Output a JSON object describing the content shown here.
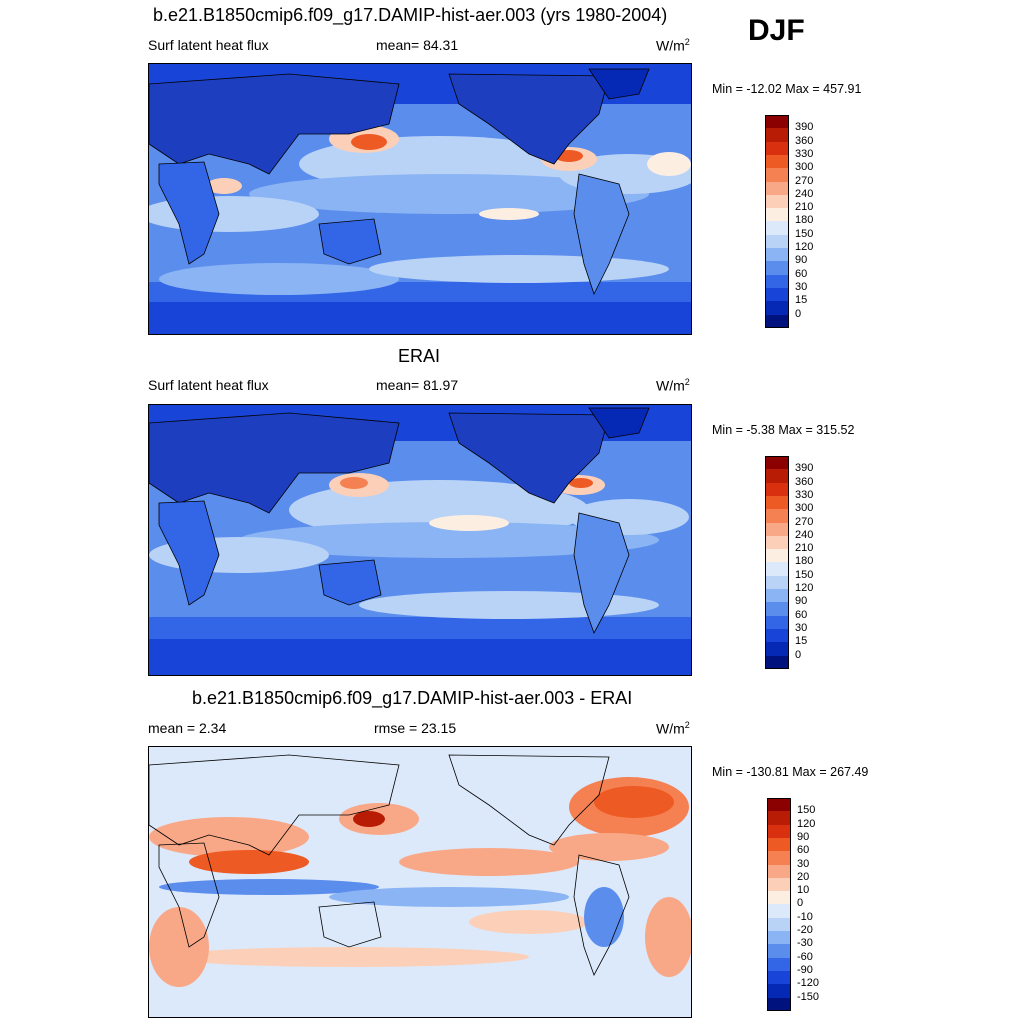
{
  "season": "DJF",
  "panels": [
    {
      "title": "b.e21.B1850cmip6.f09_g17.DAMIP-hist-aer.003 (yrs 1980-2004)",
      "left": "Surf latent heat flux",
      "center": "mean=  84.31",
      "units": "W/m",
      "units_sup": "2",
      "minmax": "Min = -12.02 Max = 457.91",
      "colorbar": {
        "labels": [
          "390",
          "360",
          "330",
          "300",
          "270",
          "240",
          "210",
          "180",
          "150",
          "120",
          "90",
          "60",
          "30",
          "15",
          "0"
        ],
        "colors": [
          "#8b0000",
          "#b81c05",
          "#d9300f",
          "#ee5a23",
          "#f58153",
          "#f9a887",
          "#fcd0b8",
          "#fdeee2",
          "#dce9fb",
          "#b9d3f7",
          "#8ab4f3",
          "#5b8ded",
          "#3366e6",
          "#1845d7",
          "#0528b5",
          "#00127d"
        ]
      }
    },
    {
      "title": "ERAI",
      "left": "Surf latent heat flux",
      "center": "mean=  81.97",
      "units": "W/m",
      "units_sup": "2",
      "minmax": "Min =  -5.38 Max = 315.52",
      "colorbar": {
        "labels": [
          "390",
          "360",
          "330",
          "300",
          "270",
          "240",
          "210",
          "180",
          "150",
          "120",
          "90",
          "60",
          "30",
          "15",
          "0"
        ],
        "colors": [
          "#8b0000",
          "#b81c05",
          "#d9300f",
          "#ee5a23",
          "#f58153",
          "#f9a887",
          "#fcd0b8",
          "#fdeee2",
          "#dce9fb",
          "#b9d3f7",
          "#8ab4f3",
          "#5b8ded",
          "#3366e6",
          "#1845d7",
          "#0528b5",
          "#00127d"
        ]
      }
    },
    {
      "title": "b.e21.B1850cmip6.f09_g17.DAMIP-hist-aer.003 - ERAI",
      "left": "mean =   2.34",
      "center": "rmse =  23.15",
      "units": "W/m",
      "units_sup": "2",
      "minmax": "Min = -130.81 Max = 267.49",
      "colorbar": {
        "labels": [
          "150",
          "120",
          "90",
          "60",
          "30",
          "20",
          "10",
          "0",
          "-10",
          "-20",
          "-30",
          "-60",
          "-90",
          "-120",
          "-150"
        ],
        "colors": [
          "#8b0000",
          "#b81c05",
          "#d9300f",
          "#ee5a23",
          "#f58153",
          "#f9a887",
          "#fcd0b8",
          "#fdeee2",
          "#dce9fb",
          "#b9d3f7",
          "#8ab4f3",
          "#5b8ded",
          "#3366e6",
          "#1845d7",
          "#0528b5",
          "#00127d"
        ]
      }
    }
  ],
  "map_palette": {
    "deep_blue": "#0a2fa8",
    "blue": "#2a5fd8",
    "mid_blue": "#5b8ded",
    "light_blue": "#b9d3f7",
    "pale_blue": "#dce9fb",
    "cream": "#fdeee2",
    "salmon": "#f9a887",
    "orange": "#ee5a23",
    "red": "#b81c05",
    "land": "#1d3fbf"
  }
}
